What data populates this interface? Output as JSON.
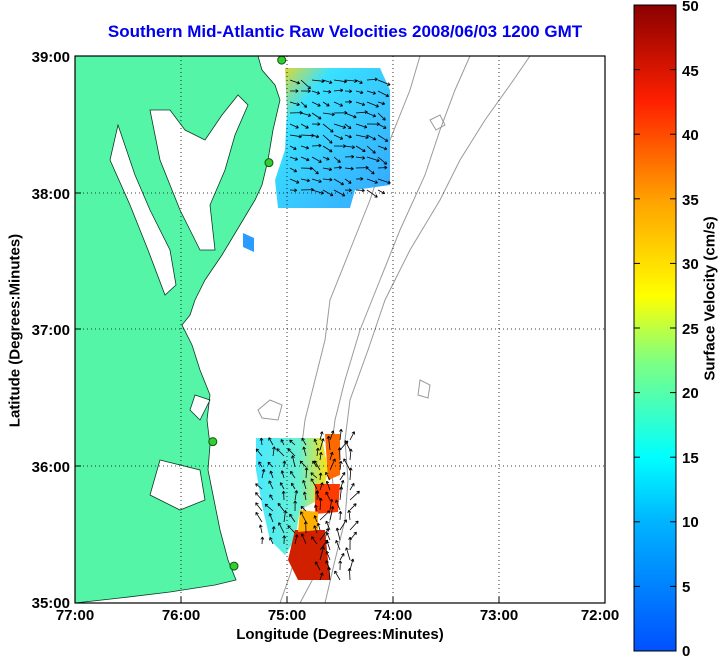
{
  "title": "Southern Mid-Atlantic Raw Velocities 2008/06/03 1200 GMT",
  "xlabel": "Longitude (Degrees:Minutes)",
  "ylabel": "Latitude (Degrees:Minutes)",
  "colorbar_label": "Surface Velocity (cm/s)",
  "colors": {
    "land": "#55f5a8",
    "contour": "#9a9a9a",
    "station": "#33cc33",
    "title": "#0000ee"
  },
  "chart_data": {
    "type": "heatmap",
    "x_ticks": [
      "77:00",
      "76:00",
      "75:00",
      "74:00",
      "73:00",
      "72:00"
    ],
    "y_ticks": [
      "39:00",
      "38:00",
      "37:00",
      "36:00",
      "35:00"
    ],
    "xlim": [
      -77,
      -72
    ],
    "ylim": [
      35,
      39
    ],
    "grid": true,
    "colorbar": {
      "range": [
        0,
        50
      ],
      "ticks": [
        "50",
        "45",
        "40",
        "35",
        "30",
        "25",
        "20",
        "15",
        "10",
        "5",
        "0"
      ]
    },
    "stations": [
      {
        "lon": -75.05,
        "lat": 38.97
      },
      {
        "lon": -75.17,
        "lat": 38.22
      },
      {
        "lon": -75.7,
        "lat": 36.18
      },
      {
        "lon": -75.5,
        "lat": 35.27
      }
    ]
  }
}
